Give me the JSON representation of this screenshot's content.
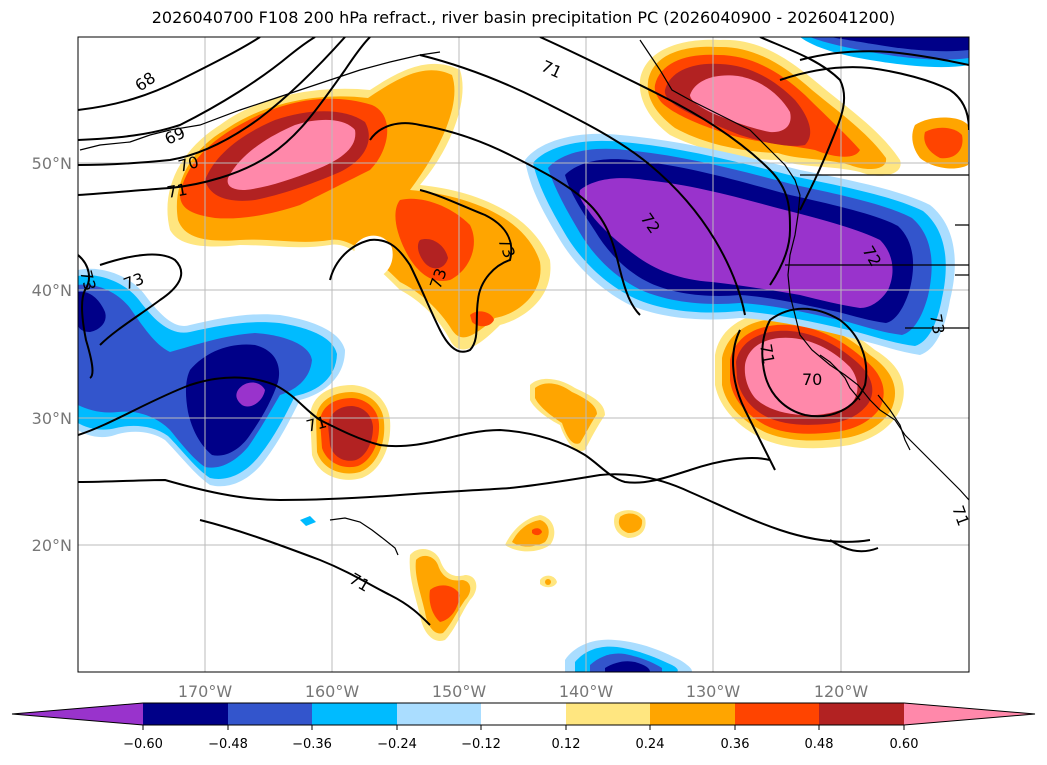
{
  "title": "2026040700 F108 200 hPa refract., river basin precipitation PC (2026040900 - 2026041200)",
  "map": {
    "lat_labels": [
      "50°N",
      "40°N",
      "30°N",
      "20°N"
    ],
    "lon_labels": [
      "170°W",
      "160°W",
      "150°W",
      "140°W",
      "130°W",
      "120°W"
    ],
    "contour_labels": [
      "68",
      "69",
      "70",
      "71",
      "73",
      "73",
      "73",
      "73",
      "71",
      "72",
      "72",
      "73",
      "71",
      "70",
      "71",
      "71",
      "71"
    ]
  },
  "colorbar": {
    "ticks": [
      "−0.60",
      "−0.48",
      "−0.36",
      "−0.24",
      "−0.12",
      "0.12",
      "0.24",
      "0.36",
      "0.48",
      "0.60"
    ],
    "colors": [
      "#9933cc",
      "#000088",
      "#3355cc",
      "#00bbff",
      "#aaddff",
      "#ffffff",
      "#ffe680",
      "#ffa500",
      "#ff4400",
      "#b22222",
      "#ff88aa"
    ]
  },
  "colors": {
    "purple": "#9933cc",
    "navy": "#000088",
    "royal": "#3355cc",
    "cyan": "#00bbff",
    "lightblue": "#aaddff",
    "yellow": "#ffe680",
    "orange": "#ffa500",
    "redorange": "#ff4400",
    "firebrick": "#b22222",
    "pink": "#ff88aa"
  }
}
